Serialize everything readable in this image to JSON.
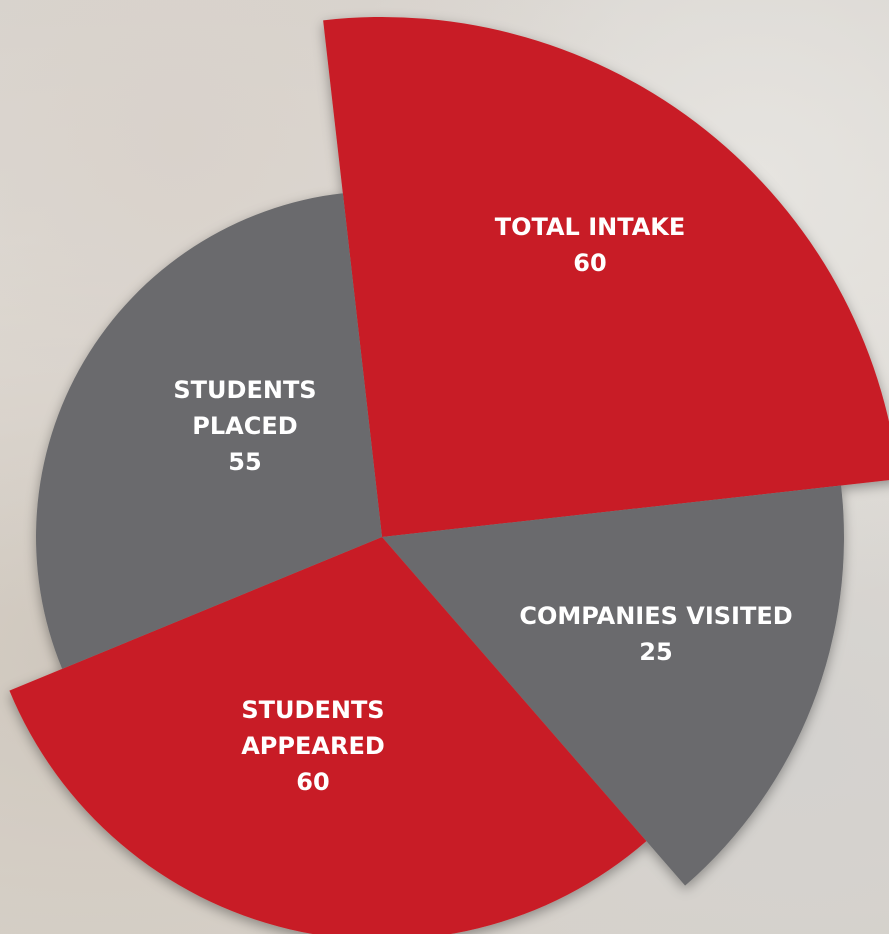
{
  "items": [
    {
      "label": "TOTAL INTAKE",
      "value": "60"
    },
    {
      "label": "COMPANIES VISITED",
      "value": "25"
    },
    {
      "label": "STUDENTS APPEARED",
      "value": "60"
    },
    {
      "label": "STUDENTS PLACED",
      "value": "55"
    }
  ]
}
